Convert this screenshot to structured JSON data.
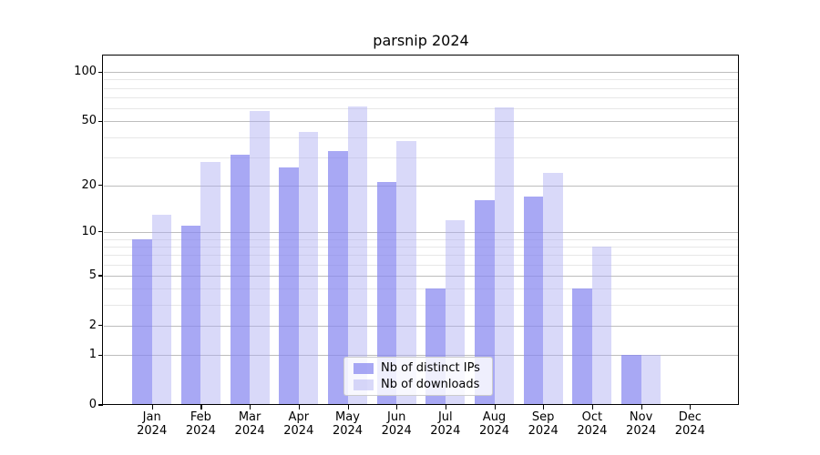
{
  "title": "parsnip 2024",
  "colors": {
    "distinct_ips_fill": "rgba(134,134,240,0.72)",
    "downloads_fill": "rgba(171,171,242,0.45)",
    "distinct_ips_hex": "#a8a8f3",
    "downloads_hex": "#d9d9f8",
    "grid_major": "#bdbdbd",
    "grid_minor": "#e7e7e7",
    "axis_spine": "#000000",
    "legend_border": "#cccccc",
    "text": "#000000"
  },
  "legend": {
    "items": [
      {
        "label": "Nb of distinct IPs",
        "series_key": "distinct_ips"
      },
      {
        "label": "Nb of downloads",
        "series_key": "downloads"
      }
    ]
  },
  "chart_data": {
    "type": "bar",
    "title": "parsnip 2024",
    "categories": [
      "Jan 2024",
      "Feb 2024",
      "Mar 2024",
      "Apr 2024",
      "May 2024",
      "Jun 2024",
      "Jul 2024",
      "Aug 2024",
      "Sep 2024",
      "Oct 2024",
      "Nov 2024",
      "Dec 2024"
    ],
    "series": [
      {
        "name": "Nb of distinct IPs",
        "values": [
          9,
          11,
          31,
          26,
          33,
          21,
          4,
          16,
          17,
          4,
          1,
          0
        ]
      },
      {
        "name": "Nb of downloads",
        "values": [
          13,
          28,
          58,
          43,
          62,
          38,
          12,
          61,
          24,
          8,
          1,
          0
        ]
      }
    ],
    "xlabel": "",
    "ylabel": "",
    "yscale": "log1p",
    "ylim": [
      0,
      126
    ],
    "yticks": [
      100,
      50,
      20,
      10,
      5,
      2,
      1,
      0
    ],
    "yticks_minor": [
      3,
      4,
      6,
      7,
      8,
      9,
      30,
      40,
      60,
      70,
      80,
      90
    ],
    "grid": true,
    "legend_position": "lower center"
  }
}
